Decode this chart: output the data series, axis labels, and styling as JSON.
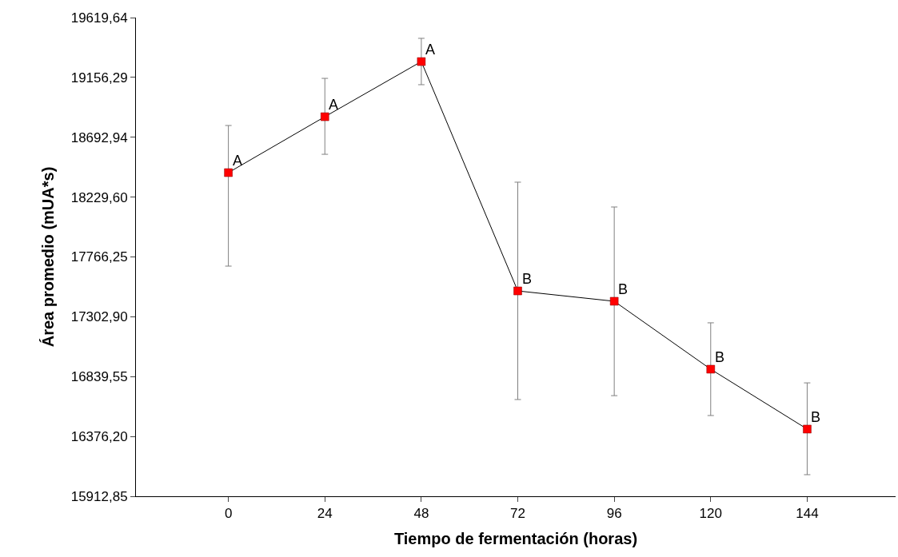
{
  "chart_data": {
    "type": "line",
    "xlabel": "Tiempo de fermentación (horas)",
    "ylabel": "Área promedio (mUA*s)",
    "x": [
      0,
      24,
      48,
      72,
      96,
      120,
      144
    ],
    "series": [
      {
        "color": "#ff0000",
        "values": [
          18419,
          18852,
          19279,
          17503,
          17423,
          16897,
          16433
        ],
        "errors": [
          [
            17695,
            18784
          ],
          [
            18561,
            19149
          ],
          [
            19100,
            19459
          ],
          [
            16662,
            18345
          ],
          [
            16692,
            18153
          ],
          [
            16538,
            17256
          ],
          [
            16080,
            16791
          ]
        ]
      }
    ],
    "xlim": [
      -23,
      166
    ],
    "xticks": [
      0,
      24,
      48,
      72,
      96,
      120,
      144
    ],
    "ylim": [
      15912.85,
      19619.64
    ],
    "yticks": [
      {
        "value": 15912.85,
        "label": "15912,85"
      },
      {
        "value": 16376.2,
        "label": "16376,20"
      },
      {
        "value": 16839.55,
        "label": "16839,55"
      },
      {
        "value": 17302.9,
        "label": "17302,90"
      },
      {
        "value": 17766.25,
        "label": "17766,25"
      },
      {
        "value": 18229.6,
        "label": "18229,60"
      },
      {
        "value": 18692.94,
        "label": "18692,94"
      },
      {
        "value": 19156.29,
        "label": "19156,29"
      },
      {
        "value": 19619.64,
        "label": "19619,64"
      }
    ],
    "annotations": [
      {
        "text": "A",
        "x": 0,
        "y": 18419
      },
      {
        "text": "A",
        "x": 24,
        "y": 18852
      },
      {
        "text": "A",
        "x": 48,
        "y": 19279
      },
      {
        "text": "B",
        "x": 72,
        "y": 17503
      },
      {
        "text": "B",
        "x": 96,
        "y": 17423
      },
      {
        "text": "B",
        "x": 120,
        "y": 16897
      },
      {
        "text": "B",
        "x": 144,
        "y": 16433
      }
    ],
    "grid": false,
    "legend": false,
    "marker": "square",
    "line_style": "solid"
  }
}
